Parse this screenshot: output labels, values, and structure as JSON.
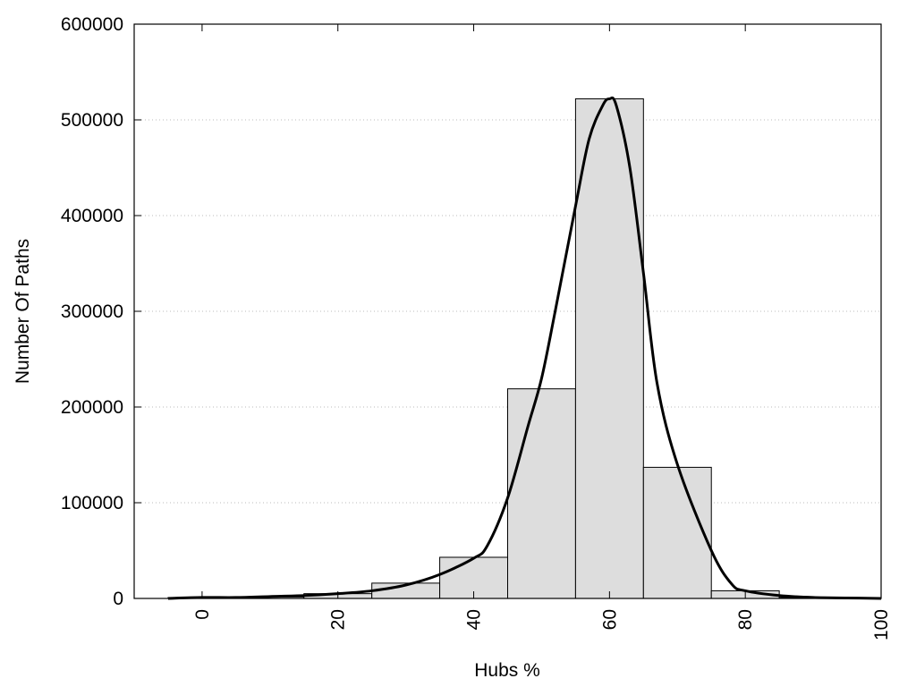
{
  "chart_data": {
    "type": "bar",
    "title": "",
    "xlabel": "Hubs %",
    "ylabel": "Number Of Paths",
    "xlim": [
      -10,
      100
    ],
    "ylim": [
      0,
      600000
    ],
    "x_ticks": [
      "0",
      "20",
      "40",
      "60",
      "80",
      "100"
    ],
    "y_ticks": [
      "0",
      "100000",
      "200000",
      "300000",
      "400000",
      "500000",
      "600000"
    ],
    "grid": "horizontal dotted",
    "legend": "none",
    "bin_width": 10,
    "categories": [
      0,
      10,
      20,
      30,
      40,
      50,
      60,
      70,
      80,
      90
    ],
    "values": [
      1000,
      1500,
      5000,
      16000,
      43000,
      219000,
      522000,
      137000,
      8000,
      1000
    ],
    "fitted_curve": {
      "x": [
        -5,
        0,
        5,
        10,
        15,
        20,
        25,
        30,
        35,
        40,
        42,
        45,
        48,
        50,
        52,
        55,
        57,
        59,
        60,
        61,
        63,
        65,
        67,
        70,
        75,
        78,
        80,
        85,
        90,
        95,
        100
      ],
      "y": [
        0,
        1000,
        1000,
        2000,
        3000,
        5000,
        8000,
        14000,
        25000,
        42000,
        55000,
        105000,
        180000,
        230000,
        300000,
        410000,
        480000,
        515000,
        522000,
        515000,
        450000,
        340000,
        225000,
        140000,
        50000,
        15000,
        8000,
        3000,
        1000,
        500,
        0
      ]
    },
    "colors": {
      "bar_fill": "#dddddd",
      "bar_stroke": "#000000",
      "curve": "#000000",
      "grid": "#bbbbbb"
    }
  }
}
